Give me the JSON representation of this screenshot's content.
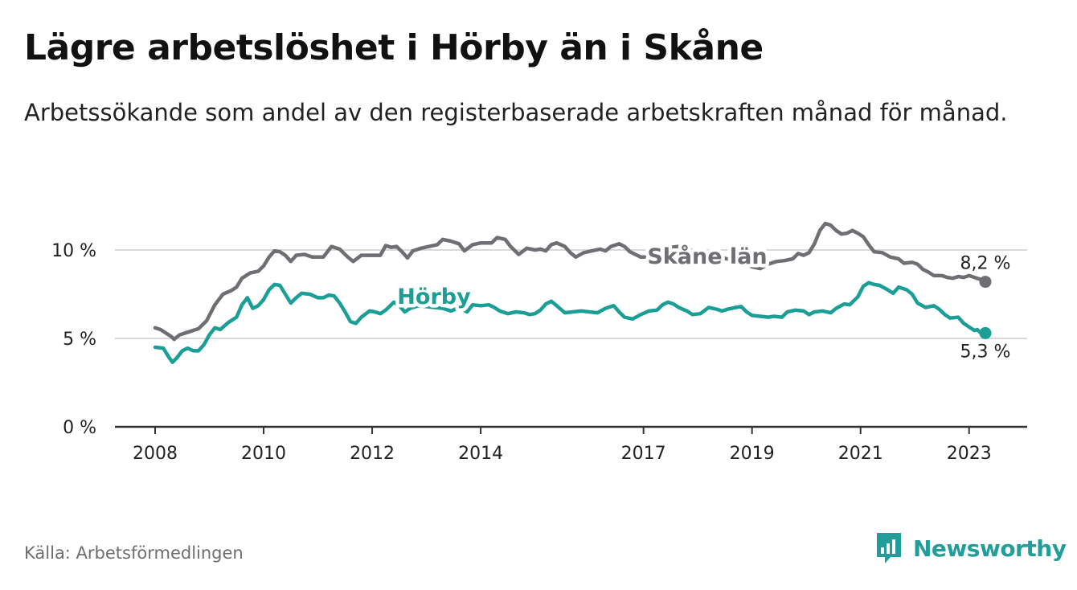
{
  "title": "Lägre arbetslöshet i Hörby än i Skåne",
  "subtitle": "Arbetssökande som andel av den registerbaserade arbetskraften månad för månad.",
  "source": "Källa: Arbetsförmedlingen",
  "brand": {
    "name": "Newsworthy",
    "color": "#229e9a"
  },
  "chart_data": {
    "type": "line",
    "title": "Lägre arbetslöshet i Hörby än i Skåne",
    "xlabel": "",
    "ylabel": "",
    "x_range": [
      2008.0,
      2023.3
    ],
    "ylim": [
      0,
      10
    ],
    "grid": true,
    "y_ticks": [
      {
        "value": 0,
        "label": "0 %"
      },
      {
        "value": 5,
        "label": "5 %"
      },
      {
        "value": 10,
        "label": "10 %"
      }
    ],
    "x_ticks": [
      {
        "value": 2008,
        "label": "2008"
      },
      {
        "value": 2010,
        "label": "2010"
      },
      {
        "value": 2012,
        "label": "2012"
      },
      {
        "value": 2014,
        "label": "2014"
      },
      {
        "value": 2017,
        "label": "2017"
      },
      {
        "value": 2019,
        "label": "2019"
      },
      {
        "value": 2021,
        "label": "2021"
      },
      {
        "value": 2023,
        "label": "2023"
      }
    ],
    "series": [
      {
        "name": "Skåne län",
        "color": "#6e6e73",
        "end_label": "8,2 %",
        "points": [
          [
            2008.0,
            5.6
          ],
          [
            2008.1,
            5.5
          ],
          [
            2008.2,
            5.3
          ],
          [
            2008.3,
            5.1
          ],
          [
            2008.35,
            4.95
          ],
          [
            2008.45,
            5.2
          ],
          [
            2008.6,
            5.35
          ],
          [
            2008.8,
            5.55
          ],
          [
            2008.95,
            6.0
          ],
          [
            2009.1,
            6.9
          ],
          [
            2009.25,
            7.5
          ],
          [
            2009.4,
            7.7
          ],
          [
            2009.5,
            7.9
          ],
          [
            2009.6,
            8.4
          ],
          [
            2009.75,
            8.7
          ],
          [
            2009.9,
            8.8
          ],
          [
            2010.0,
            9.1
          ],
          [
            2010.1,
            9.6
          ],
          [
            2010.2,
            9.95
          ],
          [
            2010.3,
            9.9
          ],
          [
            2010.4,
            9.7
          ],
          [
            2010.5,
            9.35
          ],
          [
            2010.6,
            9.7
          ],
          [
            2010.75,
            9.75
          ],
          [
            2010.9,
            9.6
          ],
          [
            2011.1,
            9.6
          ],
          [
            2011.25,
            10.2
          ],
          [
            2011.4,
            10.05
          ],
          [
            2011.55,
            9.6
          ],
          [
            2011.65,
            9.35
          ],
          [
            2011.8,
            9.7
          ],
          [
            2012.0,
            9.7
          ],
          [
            2012.15,
            9.7
          ],
          [
            2012.25,
            10.25
          ],
          [
            2012.35,
            10.15
          ],
          [
            2012.45,
            10.2
          ],
          [
            2012.55,
            9.9
          ],
          [
            2012.65,
            9.55
          ],
          [
            2012.75,
            9.95
          ],
          [
            2012.9,
            10.1
          ],
          [
            2013.05,
            10.2
          ],
          [
            2013.2,
            10.3
          ],
          [
            2013.3,
            10.6
          ],
          [
            2013.45,
            10.5
          ],
          [
            2013.6,
            10.35
          ],
          [
            2013.7,
            9.95
          ],
          [
            2013.85,
            10.3
          ],
          [
            2014.0,
            10.4
          ],
          [
            2014.2,
            10.4
          ],
          [
            2014.3,
            10.7
          ],
          [
            2014.45,
            10.6
          ],
          [
            2014.55,
            10.2
          ],
          [
            2014.7,
            9.75
          ],
          [
            2014.85,
            10.1
          ],
          [
            2015.0,
            10.0
          ],
          [
            2015.1,
            10.05
          ],
          [
            2015.2,
            9.95
          ],
          [
            2015.3,
            10.3
          ],
          [
            2015.4,
            10.4
          ],
          [
            2015.55,
            10.2
          ],
          [
            2015.65,
            9.85
          ],
          [
            2015.75,
            9.6
          ],
          [
            2015.9,
            9.85
          ],
          [
            2016.05,
            9.95
          ],
          [
            2016.2,
            10.05
          ],
          [
            2016.3,
            9.95
          ],
          [
            2016.4,
            10.2
          ],
          [
            2016.55,
            10.35
          ],
          [
            2016.65,
            10.2
          ],
          [
            2016.75,
            9.9
          ],
          [
            2016.85,
            9.75
          ],
          [
            2016.95,
            9.6
          ],
          [
            2017.1,
            9.6
          ],
          [
            2017.25,
            9.75
          ],
          [
            2017.4,
            9.8
          ],
          [
            2017.5,
            10.15
          ],
          [
            2017.65,
            10.2
          ],
          [
            2017.8,
            10.0
          ],
          [
            2018.0,
            9.95
          ],
          [
            2018.2,
            9.8
          ],
          [
            2018.4,
            9.6
          ],
          [
            2018.6,
            9.45
          ],
          [
            2018.8,
            9.25
          ],
          [
            2019.0,
            9.05
          ],
          [
            2019.15,
            8.95
          ],
          [
            2019.3,
            9.2
          ],
          [
            2019.45,
            9.35
          ],
          [
            2019.6,
            9.4
          ],
          [
            2019.75,
            9.5
          ],
          [
            2019.85,
            9.8
          ],
          [
            2019.95,
            9.7
          ],
          [
            2020.05,
            9.85
          ],
          [
            2020.15,
            10.35
          ],
          [
            2020.25,
            11.1
          ],
          [
            2020.35,
            11.5
          ],
          [
            2020.45,
            11.4
          ],
          [
            2020.55,
            11.1
          ],
          [
            2020.65,
            10.9
          ],
          [
            2020.75,
            10.95
          ],
          [
            2020.85,
            11.1
          ],
          [
            2020.95,
            10.95
          ],
          [
            2021.05,
            10.75
          ],
          [
            2021.15,
            10.3
          ],
          [
            2021.25,
            9.9
          ],
          [
            2021.4,
            9.85
          ],
          [
            2021.55,
            9.6
          ],
          [
            2021.7,
            9.5
          ],
          [
            2021.8,
            9.25
          ],
          [
            2021.95,
            9.3
          ],
          [
            2022.05,
            9.2
          ],
          [
            2022.15,
            8.9
          ],
          [
            2022.25,
            8.75
          ],
          [
            2022.35,
            8.55
          ],
          [
            2022.5,
            8.55
          ],
          [
            2022.6,
            8.45
          ],
          [
            2022.7,
            8.4
          ],
          [
            2022.8,
            8.5
          ],
          [
            2022.9,
            8.45
          ],
          [
            2023.0,
            8.55
          ],
          [
            2023.1,
            8.45
          ],
          [
            2023.2,
            8.35
          ],
          [
            2023.3,
            8.2
          ]
        ]
      },
      {
        "name": "Hörby",
        "color": "#1a9e96",
        "end_label": "5,3 %",
        "points": [
          [
            2008.0,
            4.5
          ],
          [
            2008.15,
            4.45
          ],
          [
            2008.25,
            3.95
          ],
          [
            2008.32,
            3.65
          ],
          [
            2008.4,
            3.9
          ],
          [
            2008.5,
            4.3
          ],
          [
            2008.6,
            4.45
          ],
          [
            2008.7,
            4.3
          ],
          [
            2008.8,
            4.3
          ],
          [
            2008.9,
            4.65
          ],
          [
            2009.0,
            5.2
          ],
          [
            2009.1,
            5.6
          ],
          [
            2009.2,
            5.5
          ],
          [
            2009.35,
            5.9
          ],
          [
            2009.5,
            6.2
          ],
          [
            2009.6,
            6.9
          ],
          [
            2009.7,
            7.3
          ],
          [
            2009.8,
            6.7
          ],
          [
            2009.9,
            6.85
          ],
          [
            2010.0,
            7.2
          ],
          [
            2010.1,
            7.75
          ],
          [
            2010.2,
            8.05
          ],
          [
            2010.3,
            8.0
          ],
          [
            2010.4,
            7.5
          ],
          [
            2010.5,
            7.0
          ],
          [
            2010.6,
            7.3
          ],
          [
            2010.7,
            7.55
          ],
          [
            2010.85,
            7.5
          ],
          [
            2011.0,
            7.3
          ],
          [
            2011.1,
            7.3
          ],
          [
            2011.2,
            7.45
          ],
          [
            2011.3,
            7.4
          ],
          [
            2011.4,
            7.0
          ],
          [
            2011.5,
            6.5
          ],
          [
            2011.6,
            5.95
          ],
          [
            2011.7,
            5.85
          ],
          [
            2011.8,
            6.2
          ],
          [
            2011.95,
            6.55
          ],
          [
            2012.05,
            6.5
          ],
          [
            2012.15,
            6.4
          ],
          [
            2012.25,
            6.6
          ],
          [
            2012.4,
            7.05
          ],
          [
            2012.5,
            6.85
          ],
          [
            2012.6,
            6.5
          ],
          [
            2012.7,
            6.7
          ],
          [
            2012.85,
            6.85
          ],
          [
            2013.0,
            6.8
          ],
          [
            2013.15,
            6.75
          ],
          [
            2013.3,
            6.7
          ],
          [
            2013.45,
            6.55
          ],
          [
            2013.6,
            6.75
          ],
          [
            2013.75,
            6.5
          ],
          [
            2013.85,
            6.9
          ],
          [
            2014.0,
            6.85
          ],
          [
            2014.15,
            6.9
          ],
          [
            2014.25,
            6.75
          ],
          [
            2014.35,
            6.55
          ],
          [
            2014.5,
            6.4
          ],
          [
            2014.65,
            6.5
          ],
          [
            2014.8,
            6.45
          ],
          [
            2014.9,
            6.35
          ],
          [
            2015.0,
            6.4
          ],
          [
            2015.1,
            6.6
          ],
          [
            2015.2,
            6.95
          ],
          [
            2015.3,
            7.1
          ],
          [
            2015.4,
            6.85
          ],
          [
            2015.55,
            6.45
          ],
          [
            2015.7,
            6.5
          ],
          [
            2015.85,
            6.55
          ],
          [
            2016.0,
            6.5
          ],
          [
            2016.15,
            6.45
          ],
          [
            2016.3,
            6.7
          ],
          [
            2016.45,
            6.85
          ],
          [
            2016.55,
            6.5
          ],
          [
            2016.65,
            6.2
          ],
          [
            2016.8,
            6.1
          ],
          [
            2016.95,
            6.35
          ],
          [
            2017.1,
            6.55
          ],
          [
            2017.25,
            6.6
          ],
          [
            2017.35,
            6.9
          ],
          [
            2017.45,
            7.05
          ],
          [
            2017.55,
            6.95
          ],
          [
            2017.65,
            6.75
          ],
          [
            2017.8,
            6.55
          ],
          [
            2017.9,
            6.35
          ],
          [
            2018.05,
            6.4
          ],
          [
            2018.2,
            6.75
          ],
          [
            2018.35,
            6.65
          ],
          [
            2018.45,
            6.55
          ],
          [
            2018.55,
            6.65
          ],
          [
            2018.7,
            6.75
          ],
          [
            2018.8,
            6.8
          ],
          [
            2018.9,
            6.5
          ],
          [
            2019.0,
            6.3
          ],
          [
            2019.15,
            6.25
          ],
          [
            2019.3,
            6.2
          ],
          [
            2019.4,
            6.25
          ],
          [
            2019.55,
            6.2
          ],
          [
            2019.65,
            6.5
          ],
          [
            2019.8,
            6.6
          ],
          [
            2019.95,
            6.55
          ],
          [
            2020.05,
            6.35
          ],
          [
            2020.15,
            6.5
          ],
          [
            2020.3,
            6.55
          ],
          [
            2020.45,
            6.45
          ],
          [
            2020.55,
            6.7
          ],
          [
            2020.7,
            6.95
          ],
          [
            2020.8,
            6.9
          ],
          [
            2020.95,
            7.35
          ],
          [
            2021.05,
            7.95
          ],
          [
            2021.15,
            8.15
          ],
          [
            2021.25,
            8.05
          ],
          [
            2021.35,
            8.0
          ],
          [
            2021.5,
            7.75
          ],
          [
            2021.6,
            7.55
          ],
          [
            2021.7,
            7.9
          ],
          [
            2021.85,
            7.75
          ],
          [
            2021.95,
            7.5
          ],
          [
            2022.05,
            7.0
          ],
          [
            2022.2,
            6.75
          ],
          [
            2022.35,
            6.85
          ],
          [
            2022.45,
            6.65
          ],
          [
            2022.55,
            6.35
          ],
          [
            2022.65,
            6.15
          ],
          [
            2022.8,
            6.2
          ],
          [
            2022.9,
            5.85
          ],
          [
            2023.0,
            5.65
          ],
          [
            2023.1,
            5.45
          ],
          [
            2023.15,
            5.5
          ],
          [
            2023.2,
            5.35
          ],
          [
            2023.25,
            5.3
          ],
          [
            2023.3,
            5.3
          ]
        ]
      }
    ]
  }
}
